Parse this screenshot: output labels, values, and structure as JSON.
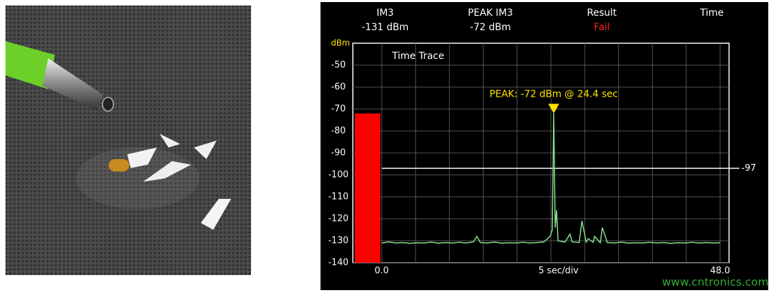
{
  "header": {
    "columns": [
      {
        "label": "IM3",
        "value": "-131 dBm"
      },
      {
        "label": "PEAK IM3",
        "value": "-72 dBm"
      },
      {
        "label": "Result",
        "value": "Fail"
      },
      {
        "label": "Time"
      }
    ]
  },
  "chart_data": {
    "type": "line",
    "title": "Time Trace",
    "y_label": "dBm",
    "x_label": "5 sec/div",
    "xlim": [
      0,
      48
    ],
    "ylim": [
      -140,
      -40
    ],
    "xticks": [
      {
        "value": 0,
        "label": "0.0"
      },
      {
        "value": 48,
        "label": "48.0"
      }
    ],
    "yticks": [
      -140,
      -130,
      -120,
      -110,
      -100,
      -90,
      -80,
      -70,
      -60,
      -50
    ],
    "grid": true,
    "bar_value": -72,
    "bar_color": "#ff0000",
    "threshold": -97,
    "peak": {
      "x": 24.4,
      "y": -72,
      "label": "PEAK: -72 dBm @ 24.4 sec",
      "color": "#ffe000"
    },
    "x": [
      0,
      1,
      2,
      3,
      4,
      5,
      6,
      7,
      8,
      9,
      10,
      11,
      12,
      13,
      13.5,
      14,
      15,
      16,
      17,
      18,
      19,
      20,
      21,
      22,
      23,
      23.9,
      24.2,
      24.4,
      24.6,
      24.8,
      25,
      26,
      26.7,
      27,
      28,
      28.4,
      29,
      29.3,
      30,
      30.2,
      31,
      31.3,
      32,
      33,
      34,
      35,
      36,
      37,
      38,
      39,
      40,
      41,
      42,
      43,
      44,
      45,
      46,
      47,
      48
    ],
    "series": [
      {
        "color": "#86e08e",
        "values": [
          -131,
          -130.5,
          -131,
          -130.8,
          -131.2,
          -130.9,
          -131,
          -130.6,
          -131.1,
          -130.8,
          -131,
          -130.7,
          -131,
          -130.5,
          -128,
          -130.8,
          -131,
          -130.6,
          -131.1,
          -130.9,
          -131,
          -130.7,
          -131,
          -130.8,
          -130.5,
          -128,
          -125,
          -72,
          -124,
          -116,
          -130,
          -130.6,
          -127,
          -130.5,
          -130.8,
          -121,
          -130.6,
          -129,
          -130.7,
          -128,
          -130.9,
          -124,
          -130.8,
          -131,
          -130.6,
          -131.1,
          -130.9,
          -131,
          -130.7,
          -131,
          -130.8,
          -131.2,
          -130.9,
          -131,
          -130.7,
          -131,
          -130.8,
          -131,
          -130.9
        ]
      }
    ]
  },
  "watermark": "www.cntronics.com"
}
